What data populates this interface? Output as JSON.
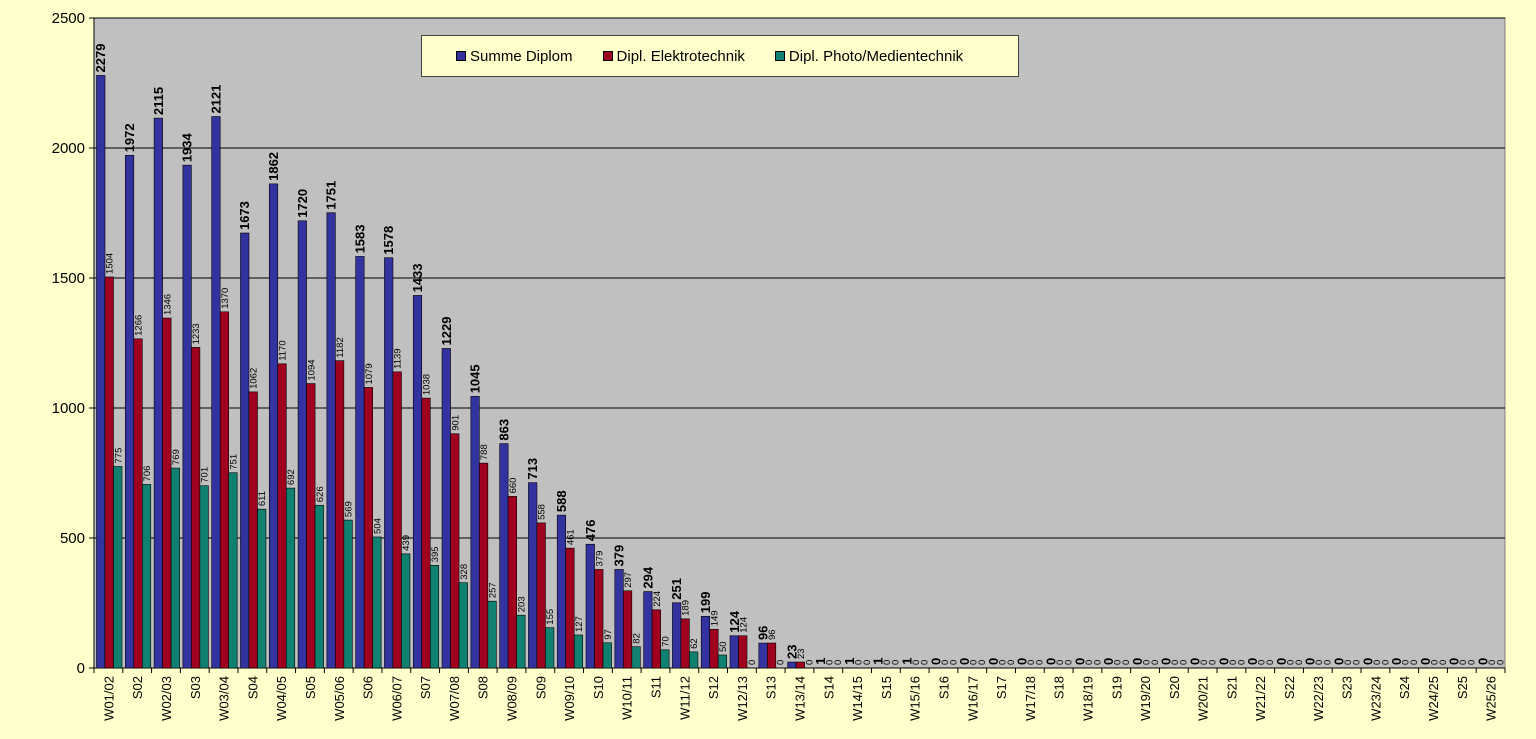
{
  "colors": {
    "background": "#FFFFCC",
    "plot_area": "#C0C0C0",
    "gridline": "#000000"
  },
  "chart_data": {
    "type": "bar",
    "title": "",
    "xlabel": "",
    "ylabel": "",
    "ylim": [
      0,
      2500
    ],
    "yticks": [
      "0",
      "500",
      "1000",
      "1500",
      "2000",
      "2500"
    ],
    "grid": true,
    "legend_position": "top-center",
    "categories": [
      "W01/02",
      "S02",
      "W02/03",
      "S03",
      "W03/04",
      "S04",
      "W04/05",
      "S05",
      "W05/06",
      "S06",
      "W06/07",
      "S07",
      "W07/08",
      "S08",
      "W08/09",
      "S09",
      "W09/10",
      "S10",
      "W10/11",
      "S11",
      "W11/12",
      "S12",
      "W12/13",
      "S13",
      "W13/14",
      "S14",
      "W14/15",
      "S15",
      "W15/16",
      "S16",
      "W16/17",
      "S17",
      "W17/18",
      "S18",
      "W18/19",
      "S19",
      "W19/20",
      "S20",
      "W20/21",
      "S21",
      "W21/22",
      "S22",
      "W22/23",
      "S23",
      "W23/24",
      "S24",
      "W24/25",
      "S25",
      "W25/26"
    ],
    "series": [
      {
        "name": "Summe Diplom",
        "color": "#3333A0",
        "values": [
          2279,
          1972,
          2115,
          1934,
          2121,
          1673,
          1862,
          1720,
          1751,
          1583,
          1578,
          1433,
          1229,
          1045,
          863,
          713,
          588,
          476,
          379,
          294,
          251,
          199,
          124,
          96,
          23,
          1,
          1,
          1,
          1,
          0,
          0,
          0,
          0,
          0,
          0,
          0,
          0,
          0,
          0,
          0,
          0,
          0,
          0,
          0,
          0,
          0,
          0,
          0,
          0
        ]
      },
      {
        "name": "Dipl. Elektrotechnik",
        "color": "#A00020",
        "values": [
          1504,
          1266,
          1346,
          1233,
          1370,
          1062,
          1170,
          1094,
          1182,
          1079,
          1139,
          1038,
          901,
          788,
          660,
          558,
          461,
          379,
          297,
          224,
          189,
          149,
          124,
          96,
          23,
          0,
          0,
          0,
          0,
          0,
          0,
          0,
          0,
          0,
          0,
          0,
          0,
          0,
          0,
          0,
          0,
          0,
          0,
          0,
          0,
          0,
          0,
          0,
          0
        ]
      },
      {
        "name": "Dipl. Photo/Medientechnik",
        "color": "#108070",
        "values": [
          775,
          706,
          769,
          701,
          751,
          611,
          692,
          626,
          569,
          504,
          439,
          395,
          328,
          257,
          203,
          155,
          127,
          97,
          82,
          70,
          62,
          50,
          0,
          0,
          0,
          0,
          0,
          0,
          0,
          0,
          0,
          0,
          0,
          0,
          0,
          0,
          0,
          0,
          0,
          0,
          0,
          0,
          0,
          0,
          0,
          0,
          0,
          0,
          0
        ]
      }
    ]
  }
}
